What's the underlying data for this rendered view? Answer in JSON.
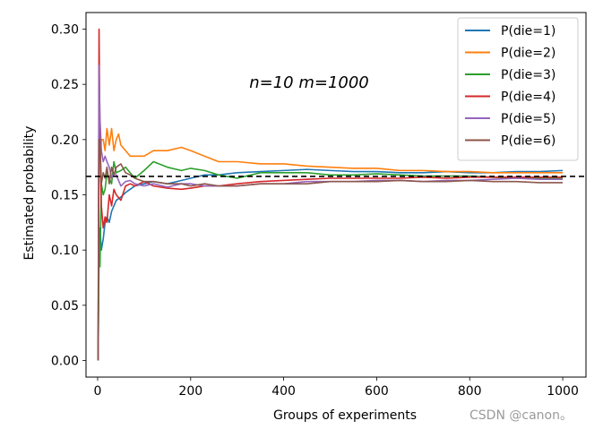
{
  "watermark": "CSDN @canon。",
  "chart_data": {
    "type": "line",
    "annotation": "n=10   m=1000",
    "xlabel": "Groups of experiments",
    "ylabel": "Estimated probability",
    "xlim": [
      -25,
      1050
    ],
    "ylim": [
      -0.015,
      0.315
    ],
    "xticks": [
      0,
      200,
      400,
      600,
      800,
      1000
    ],
    "xtick_labels": [
      "0",
      "200",
      "400",
      "600",
      "800",
      "1000"
    ],
    "yticks": [
      0.0,
      0.05,
      0.1,
      0.15,
      0.2,
      0.25,
      0.3
    ],
    "ytick_labels": [
      "0.00",
      "0.05",
      "0.10",
      "0.15",
      "0.20",
      "0.25",
      "0.30"
    ],
    "reference_line": {
      "y": 0.1667,
      "style": "dashed",
      "color": "#000000"
    },
    "grid": false,
    "legend_position": "top-right",
    "series": [
      {
        "name": "P(die=1)",
        "color": "#1f77b4",
        "x": [
          1,
          3,
          5,
          8,
          12,
          16,
          20,
          25,
          30,
          35,
          40,
          50,
          60,
          70,
          80,
          100,
          120,
          150,
          180,
          200,
          230,
          260,
          300,
          350,
          400,
          450,
          500,
          550,
          600,
          650,
          700,
          750,
          800,
          850,
          900,
          950,
          1000
        ],
        "values": [
          0.0,
          0.1,
          0.12,
          0.1,
          0.11,
          0.125,
          0.13,
          0.125,
          0.135,
          0.14,
          0.145,
          0.148,
          0.152,
          0.155,
          0.158,
          0.16,
          0.162,
          0.16,
          0.163,
          0.165,
          0.168,
          0.168,
          0.17,
          0.171,
          0.172,
          0.173,
          0.172,
          0.171,
          0.171,
          0.17,
          0.17,
          0.171,
          0.17,
          0.17,
          0.171,
          0.171,
          0.172
        ]
      },
      {
        "name": "P(die=2)",
        "color": "#ff7f0e",
        "x": [
          1,
          3,
          5,
          8,
          12,
          16,
          20,
          25,
          30,
          35,
          40,
          45,
          50,
          60,
          70,
          80,
          100,
          120,
          150,
          180,
          200,
          230,
          260,
          300,
          350,
          400,
          450,
          500,
          550,
          600,
          650,
          700,
          750,
          800,
          850,
          900,
          950,
          1000
        ],
        "values": [
          0.0,
          0.2,
          0.18,
          0.2,
          0.2,
          0.19,
          0.21,
          0.195,
          0.21,
          0.19,
          0.2,
          0.205,
          0.195,
          0.19,
          0.185,
          0.185,
          0.185,
          0.19,
          0.19,
          0.193,
          0.19,
          0.185,
          0.18,
          0.18,
          0.178,
          0.178,
          0.176,
          0.175,
          0.174,
          0.174,
          0.172,
          0.172,
          0.171,
          0.171,
          0.17,
          0.17,
          0.17,
          0.17
        ]
      },
      {
        "name": "P(die=3)",
        "color": "#2ca02c",
        "x": [
          1,
          3,
          5,
          8,
          12,
          16,
          20,
          25,
          30,
          35,
          40,
          50,
          60,
          70,
          80,
          100,
          120,
          150,
          180,
          200,
          230,
          260,
          300,
          350,
          400,
          450,
          500,
          550,
          600,
          650,
          700,
          750,
          800,
          850,
          900,
          950,
          1000
        ],
        "values": [
          0.0,
          0.1,
          0.085,
          0.16,
          0.15,
          0.155,
          0.17,
          0.165,
          0.16,
          0.18,
          0.17,
          0.172,
          0.175,
          0.17,
          0.165,
          0.172,
          0.18,
          0.175,
          0.172,
          0.174,
          0.172,
          0.168,
          0.165,
          0.17,
          0.17,
          0.17,
          0.168,
          0.168,
          0.169,
          0.168,
          0.167,
          0.167,
          0.167,
          0.166,
          0.165,
          0.165,
          0.165
        ]
      },
      {
        "name": "P(die=4)",
        "color": "#d62728",
        "x": [
          1,
          3,
          5,
          8,
          12,
          16,
          20,
          25,
          30,
          35,
          40,
          50,
          60,
          70,
          80,
          100,
          120,
          150,
          180,
          200,
          230,
          260,
          300,
          350,
          400,
          450,
          500,
          550,
          600,
          650,
          700,
          750,
          800,
          850,
          900,
          950,
          1000
        ],
        "values": [
          0.0,
          0.3,
          0.2,
          0.14,
          0.12,
          0.13,
          0.125,
          0.15,
          0.14,
          0.155,
          0.15,
          0.145,
          0.158,
          0.16,
          0.158,
          0.162,
          0.158,
          0.156,
          0.155,
          0.156,
          0.158,
          0.158,
          0.16,
          0.162,
          0.163,
          0.164,
          0.165,
          0.165,
          0.165,
          0.165,
          0.166,
          0.165,
          0.166,
          0.166,
          0.166,
          0.166,
          0.166
        ]
      },
      {
        "name": "P(die=5)",
        "color": "#9467bd",
        "x": [
          1,
          3,
          5,
          8,
          12,
          16,
          20,
          25,
          30,
          35,
          40,
          50,
          60,
          70,
          80,
          100,
          120,
          150,
          180,
          200,
          230,
          260,
          300,
          350,
          400,
          450,
          500,
          550,
          600,
          650,
          700,
          750,
          800,
          850,
          900,
          950,
          1000
        ],
        "values": [
          0.0,
          0.267,
          0.22,
          0.19,
          0.18,
          0.185,
          0.18,
          0.175,
          0.165,
          0.17,
          0.168,
          0.158,
          0.162,
          0.163,
          0.16,
          0.158,
          0.16,
          0.157,
          0.16,
          0.16,
          0.158,
          0.158,
          0.158,
          0.16,
          0.16,
          0.162,
          0.162,
          0.162,
          0.163,
          0.163,
          0.162,
          0.163,
          0.163,
          0.164,
          0.165,
          0.164,
          0.164
        ]
      },
      {
        "name": "P(die=6)",
        "color": "#8c564b",
        "x": [
          1,
          3,
          5,
          8,
          12,
          16,
          20,
          25,
          30,
          35,
          40,
          50,
          60,
          70,
          80,
          100,
          120,
          150,
          180,
          200,
          230,
          260,
          300,
          350,
          400,
          450,
          500,
          550,
          600,
          650,
          700,
          750,
          800,
          850,
          900,
          950,
          1000
        ],
        "values": [
          0.0,
          0.2,
          0.2,
          0.16,
          0.17,
          0.165,
          0.175,
          0.16,
          0.175,
          0.168,
          0.175,
          0.178,
          0.17,
          0.168,
          0.165,
          0.162,
          0.162,
          0.16,
          0.16,
          0.158,
          0.16,
          0.158,
          0.158,
          0.16,
          0.16,
          0.16,
          0.162,
          0.162,
          0.162,
          0.163,
          0.162,
          0.162,
          0.163,
          0.162,
          0.162,
          0.161,
          0.161
        ]
      }
    ]
  }
}
